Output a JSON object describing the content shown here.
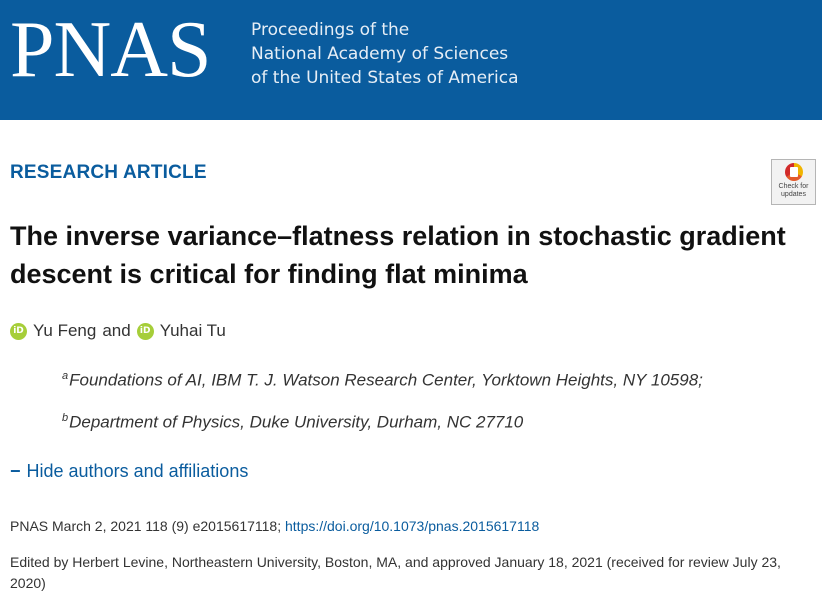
{
  "banner": {
    "logo": "PNAS",
    "subtitle_lines": [
      "Proceedings of the",
      "National Academy of Sciences",
      "of the United States of America"
    ],
    "color": "#0a5c9e"
  },
  "article": {
    "type": "RESEARCH ARTICLE",
    "title": "The inverse variance–flatness relation in stochastic gradient descent is critical for finding flat minima",
    "check_updates": {
      "line1": "Check for",
      "line2": "updates"
    },
    "authors": [
      {
        "name": "Yu Feng",
        "icon": "orcid-icon"
      },
      {
        "name": "Yuhai Tu",
        "icon": "orcid-icon"
      }
    ],
    "author_joiner": "and",
    "affiliations": [
      {
        "sup": "a",
        "text": "Foundations of AI, IBM T. J. Watson Research Center, Yorktown Heights, NY 10598;"
      },
      {
        "sup": "b",
        "text": "Department of Physics, Duke University, Durham, NC 27710"
      }
    ],
    "hide_toggle": {
      "symbol": "−",
      "label": "Hide authors and affiliations"
    },
    "citation": {
      "text": "PNAS March 2, 2021 118 (9) e2015617118; ",
      "doi": "https://doi.org/10.1073/pnas.2015617118"
    },
    "edited": "Edited by Herbert Levine, Northeastern University, Boston, MA, and approved January 18, 2021 (received for review July 23, 2020)"
  }
}
